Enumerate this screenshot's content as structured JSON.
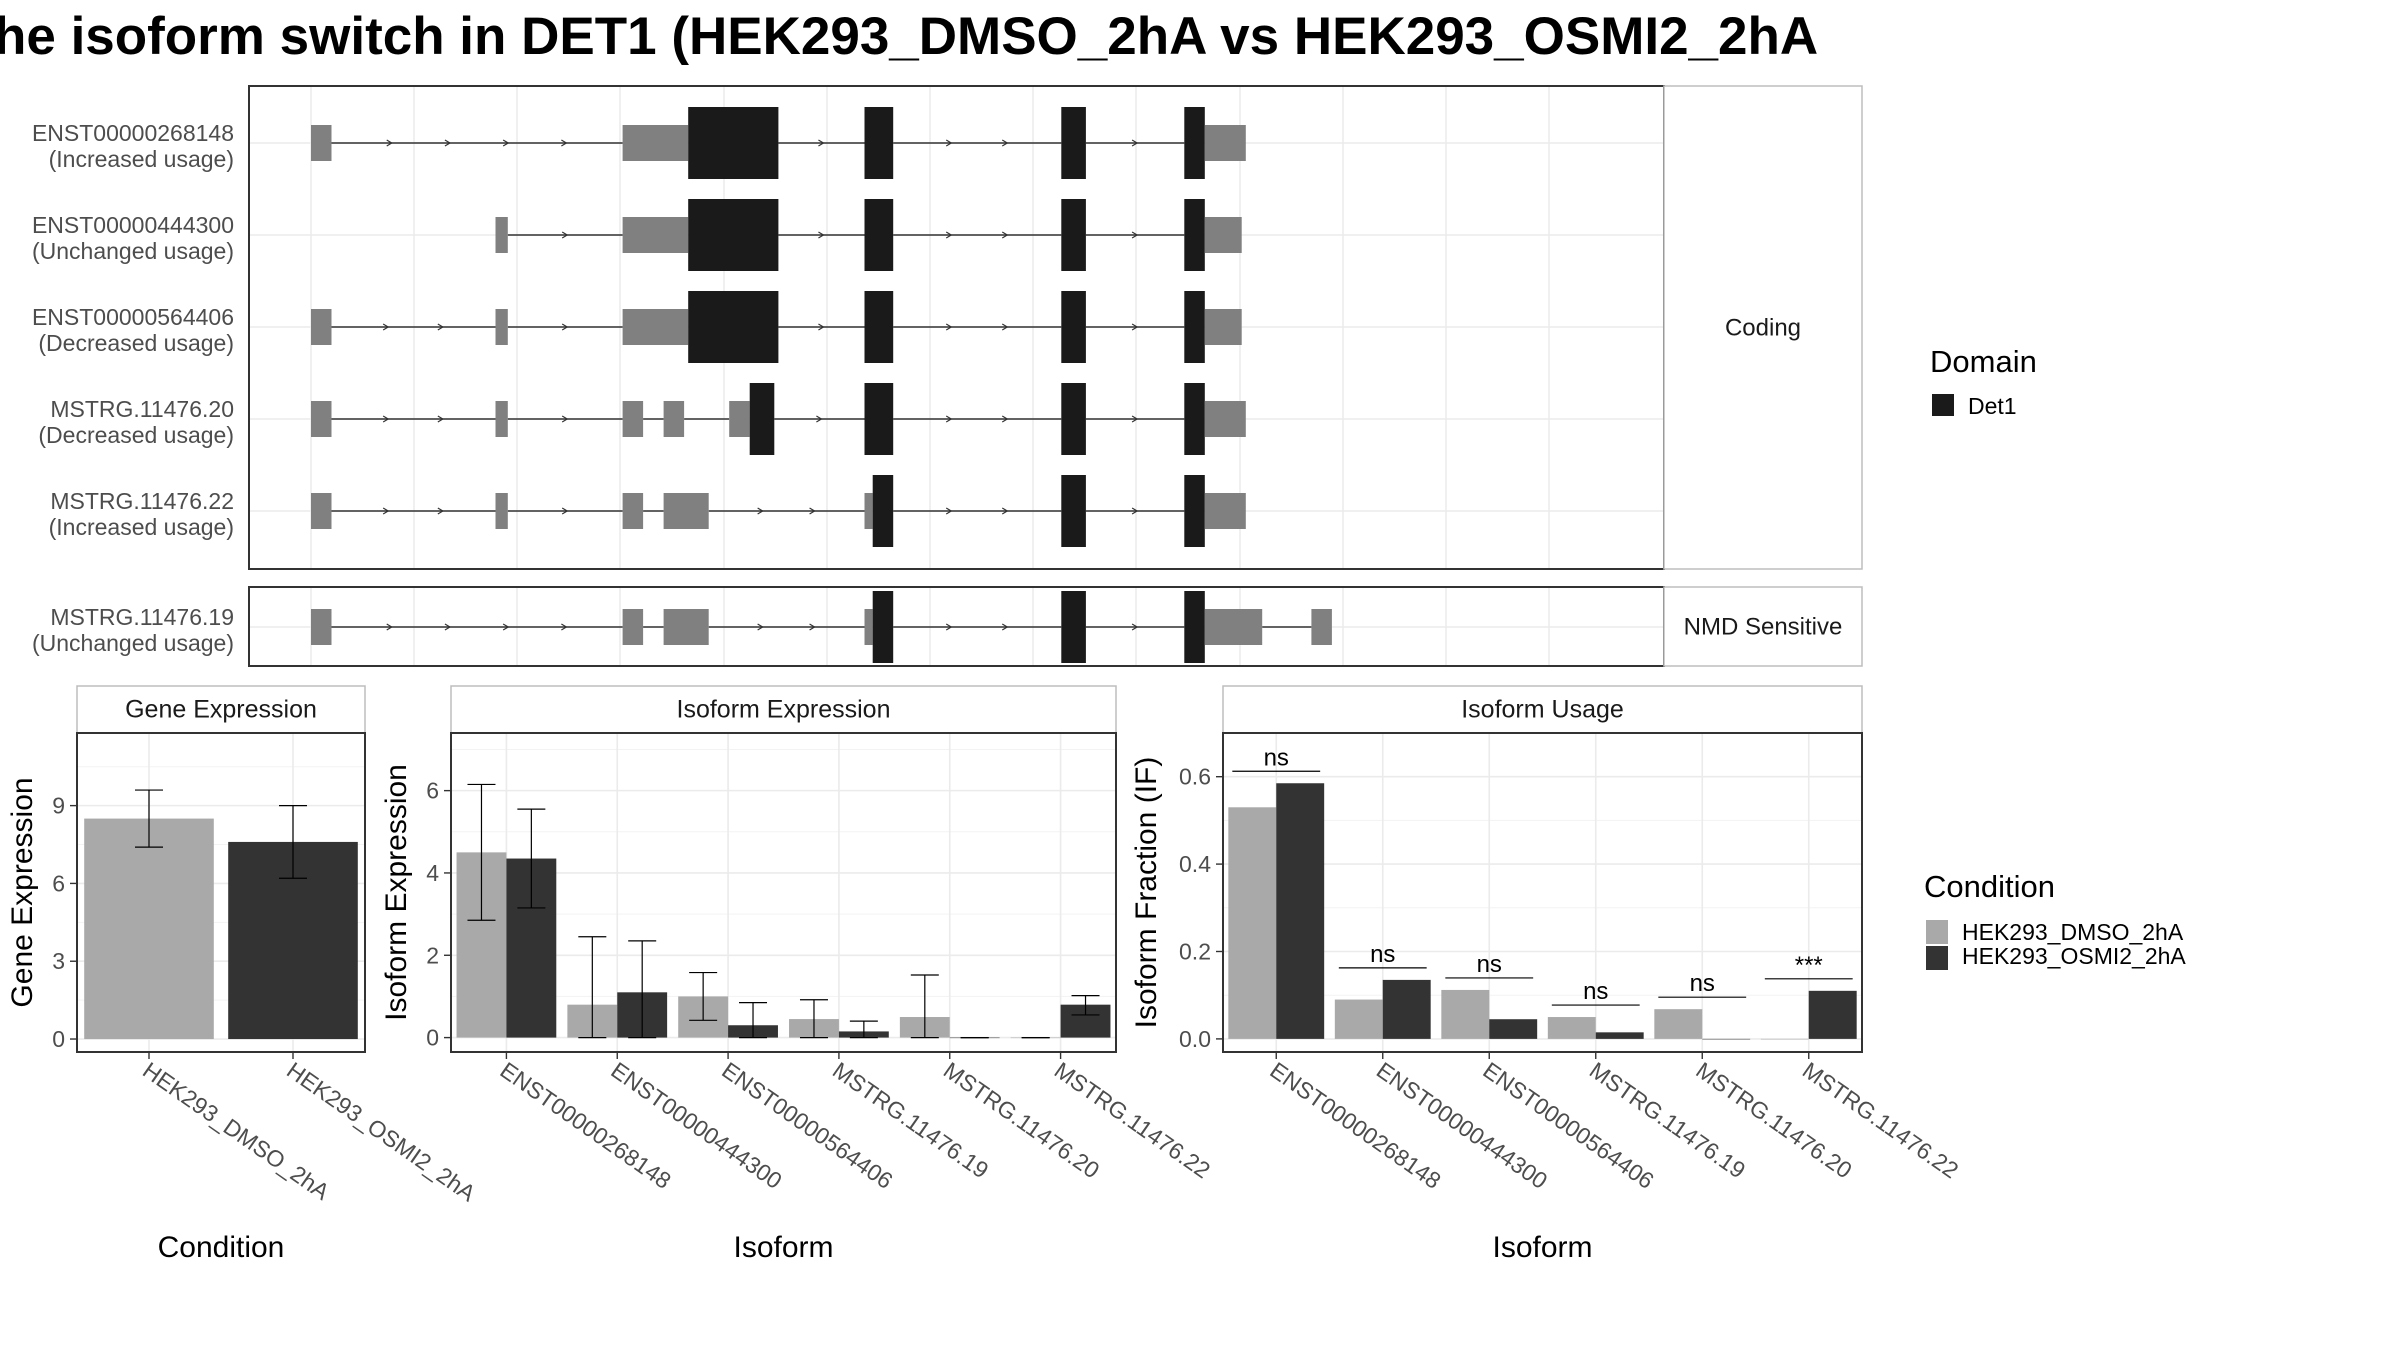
{
  "title": "he isoform switch in DET1 (HEK293_DMSO_2hA vs HEK293_OSMI2_2hA",
  "colors": {
    "utr": "#808080",
    "cds": "#1a1a1a",
    "domain": "#1a1a1a",
    "dmso": "#a9a9a9",
    "osmi": "#333333",
    "grid": "#ebebeb",
    "panel_border": "#333333",
    "strip_border": "#bdbdbd",
    "intron": "#333333"
  },
  "structure": {
    "facets": [
      {
        "label": "Coding",
        "transcripts": [
          {
            "name": "ENST00000268148",
            "note": "(Increased usage)",
            "exons": [
              {
                "kind": "utr",
                "start": 0.0,
                "end": 2.5
              },
              {
                "kind": "utr",
                "start": 38.0,
                "end": 46.0
              },
              {
                "kind": "cds",
                "start": 46.0,
                "end": 57.0
              },
              {
                "kind": "cds",
                "start": 67.5,
                "end": 71.0
              },
              {
                "kind": "cds",
                "start": 91.5,
                "end": 94.5
              },
              {
                "kind": "cds",
                "start": 106.5,
                "end": 109.0
              },
              {
                "kind": "utr",
                "start": 109.0,
                "end": 114.0
              }
            ]
          },
          {
            "name": "ENST00000444300",
            "note": "(Unchanged usage)",
            "exons": [
              {
                "kind": "utr",
                "start": 22.5,
                "end": 24.0
              },
              {
                "kind": "utr",
                "start": 38.0,
                "end": 46.0
              },
              {
                "kind": "cds",
                "start": 46.0,
                "end": 57.0
              },
              {
                "kind": "cds",
                "start": 67.5,
                "end": 71.0
              },
              {
                "kind": "cds",
                "start": 91.5,
                "end": 94.5
              },
              {
                "kind": "cds",
                "start": 106.5,
                "end": 109.0
              },
              {
                "kind": "utr",
                "start": 109.0,
                "end": 113.5
              }
            ]
          },
          {
            "name": "ENST00000564406",
            "note": "(Decreased usage)",
            "exons": [
              {
                "kind": "utr",
                "start": 0.0,
                "end": 2.5
              },
              {
                "kind": "utr",
                "start": 22.5,
                "end": 24.0
              },
              {
                "kind": "utr",
                "start": 38.0,
                "end": 46.0
              },
              {
                "kind": "cds",
                "start": 46.0,
                "end": 57.0
              },
              {
                "kind": "cds",
                "start": 67.5,
                "end": 71.0
              },
              {
                "kind": "cds",
                "start": 91.5,
                "end": 94.5
              },
              {
                "kind": "cds",
                "start": 106.5,
                "end": 109.0
              },
              {
                "kind": "utr",
                "start": 109.0,
                "end": 113.5
              }
            ]
          },
          {
            "name": "MSTRG.11476.20",
            "note": "(Decreased usage)",
            "exons": [
              {
                "kind": "utr",
                "start": 0.0,
                "end": 2.5
              },
              {
                "kind": "utr",
                "start": 22.5,
                "end": 24.0
              },
              {
                "kind": "utr",
                "start": 38.0,
                "end": 40.5
              },
              {
                "kind": "utr",
                "start": 43.0,
                "end": 45.5
              },
              {
                "kind": "utr",
                "start": 51.0,
                "end": 53.5
              },
              {
                "kind": "cds",
                "start": 53.5,
                "end": 56.5
              },
              {
                "kind": "cds",
                "start": 67.5,
                "end": 71.0
              },
              {
                "kind": "cds",
                "start": 91.5,
                "end": 94.5
              },
              {
                "kind": "cds",
                "start": 106.5,
                "end": 109.0
              },
              {
                "kind": "utr",
                "start": 109.0,
                "end": 114.0
              }
            ]
          },
          {
            "name": "MSTRG.11476.22",
            "note": "(Increased usage)",
            "exons": [
              {
                "kind": "utr",
                "start": 0.0,
                "end": 2.5
              },
              {
                "kind": "utr",
                "start": 22.5,
                "end": 24.0
              },
              {
                "kind": "utr",
                "start": 38.0,
                "end": 40.5
              },
              {
                "kind": "utr",
                "start": 43.0,
                "end": 48.5
              },
              {
                "kind": "utr",
                "start": 67.5,
                "end": 68.5
              },
              {
                "kind": "cds",
                "start": 68.5,
                "end": 71.0
              },
              {
                "kind": "cds",
                "start": 91.5,
                "end": 94.5
              },
              {
                "kind": "cds",
                "start": 106.5,
                "end": 109.0
              },
              {
                "kind": "utr",
                "start": 109.0,
                "end": 114.0
              }
            ]
          }
        ]
      },
      {
        "label": "NMD Sensitive",
        "transcripts": [
          {
            "name": "MSTRG.11476.19",
            "note": "(Unchanged usage)",
            "exons": [
              {
                "kind": "utr",
                "start": 0.0,
                "end": 2.5
              },
              {
                "kind": "utr",
                "start": 38.0,
                "end": 40.5
              },
              {
                "kind": "utr",
                "start": 43.0,
                "end": 48.5
              },
              {
                "kind": "utr",
                "start": 67.5,
                "end": 68.5
              },
              {
                "kind": "cds",
                "start": 68.5,
                "end": 71.0
              },
              {
                "kind": "cds",
                "start": 91.5,
                "end": 94.5
              },
              {
                "kind": "cds",
                "start": 106.5,
                "end": 109.0
              },
              {
                "kind": "utr",
                "start": 109.0,
                "end": 116.0
              },
              {
                "kind": "utr",
                "start": 122.0,
                "end": 124.5
              }
            ]
          }
        ]
      }
    ]
  },
  "legend_domain": {
    "title": "Domain",
    "items": [
      {
        "label": "Det1",
        "color": "#1a1a1a"
      }
    ]
  },
  "legend_condition": {
    "title": "Condition",
    "items": [
      {
        "label": "HEK293_DMSO_2hA",
        "color": "#a9a9a9"
      },
      {
        "label": "HEK293_OSMI2_2hA",
        "color": "#333333"
      }
    ]
  },
  "chart_data": [
    {
      "type": "bar",
      "title": "Gene Expression",
      "xlabel": "Condition",
      "ylabel": "Gene Expression",
      "categories": [
        "HEK293_DMSO_2hA",
        "HEK293_OSMI2_2hA"
      ],
      "values": [
        8.5,
        7.6
      ],
      "errors": [
        [
          7.4,
          9.6
        ],
        [
          6.2,
          9.0
        ]
      ],
      "ylim": [
        -0.5,
        11.8
      ],
      "yticks": [
        0,
        3,
        6,
        9
      ],
      "grid": true
    },
    {
      "type": "bar",
      "title": "Isoform Expression",
      "xlabel": "Isoform",
      "ylabel": "Isoform Expression",
      "categories": [
        "ENST00000268148",
        "ENST00000444300",
        "ENST00000564406",
        "MSTRG.11476.19",
        "MSTRG.11476.20",
        "MSTRG.11476.22"
      ],
      "series": [
        {
          "name": "HEK293_DMSO_2hA",
          "values": [
            4.5,
            0.8,
            1.0,
            0.45,
            0.5,
            0.0
          ],
          "errors": [
            [
              2.85,
              6.15
            ],
            [
              0.0,
              2.45
            ],
            [
              0.42,
              1.58
            ],
            [
              0.0,
              0.92
            ],
            [
              0.0,
              1.52
            ],
            [
              0.0,
              0.0
            ]
          ]
        },
        {
          "name": "HEK293_OSMI2_2hA",
          "values": [
            4.35,
            1.1,
            0.3,
            0.15,
            0.0,
            0.8
          ],
          "errors": [
            [
              3.15,
              5.55
            ],
            [
              0.0,
              2.35
            ],
            [
              0.0,
              0.85
            ],
            [
              0.0,
              0.4
            ],
            [
              0.0,
              0.0
            ],
            [
              0.55,
              1.02
            ]
          ]
        }
      ],
      "ylim": [
        -0.35,
        7.4
      ],
      "yticks": [
        0,
        2,
        4,
        6
      ],
      "grid": true
    },
    {
      "type": "bar",
      "title": "Isoform Usage",
      "xlabel": "Isoform",
      "ylabel": "Isoform Fraction (IF)",
      "categories": [
        "ENST00000268148",
        "ENST00000444300",
        "ENST00000564406",
        "MSTRG.11476.19",
        "MSTRG.11476.20",
        "MSTRG.11476.22"
      ],
      "series": [
        {
          "name": "HEK293_DMSO_2hA",
          "values": [
            0.53,
            0.09,
            0.112,
            0.05,
            0.068,
            0.0
          ]
        },
        {
          "name": "HEK293_OSMI2_2hA",
          "values": [
            0.585,
            0.135,
            0.045,
            0.015,
            0.0,
            0.11
          ]
        }
      ],
      "significance": [
        "ns",
        "ns",
        "ns",
        "ns",
        "ns",
        "***"
      ],
      "ylim": [
        -0.03,
        0.7
      ],
      "yticks": [
        0.0,
        0.2,
        0.4,
        0.6
      ],
      "ytick_labels": [
        "0.0",
        "0.2",
        "0.4",
        "0.6"
      ],
      "grid": true
    }
  ]
}
